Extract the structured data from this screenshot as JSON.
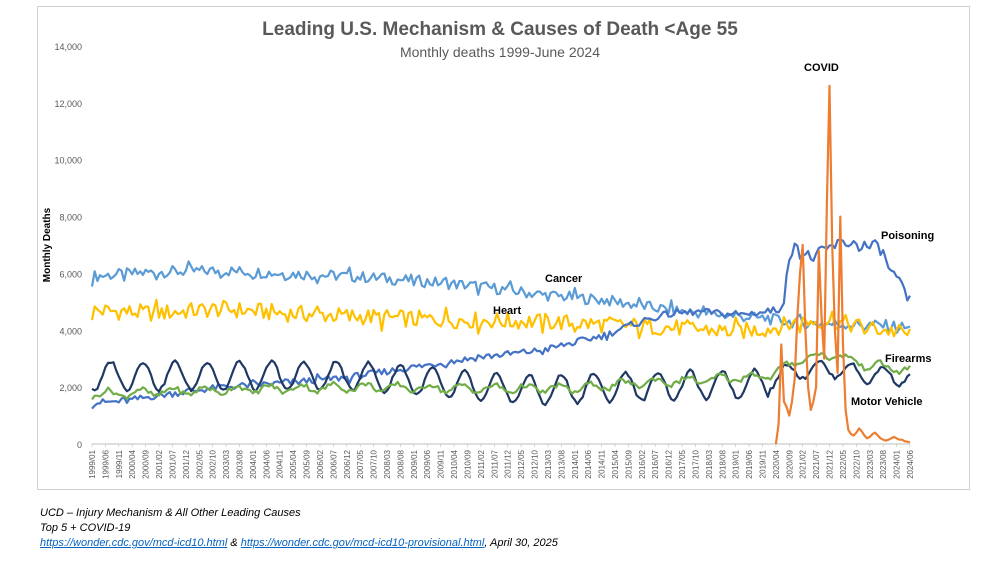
{
  "chart_data": {
    "type": "line",
    "title": "Leading U.S. Mechanism & Causes of Death <Age 55",
    "subtitle": "Monthly deaths 1999-June 2024",
    "xlabel": "",
    "ylabel": "Monthly Deaths",
    "ylim": [
      0,
      14000
    ],
    "yticks": [
      "0",
      "2,000",
      "4,000",
      "6,000",
      "8,000",
      "10,000",
      "12,000",
      "14,000"
    ],
    "xticks": [
      "1999/01",
      "1999/06",
      "1999/11",
      "2000/04",
      "2000/09",
      "2001/02",
      "2001/07",
      "2001/12",
      "2002/05",
      "2002/10",
      "2003/03",
      "2003/08",
      "2004/01",
      "2004/06",
      "2004/11",
      "2005/04",
      "2005/09",
      "2006/02",
      "2006/07",
      "2006/12",
      "2007/05",
      "2007/10",
      "2008/03",
      "2008/08",
      "2009/01",
      "2009/06",
      "2009/11",
      "2010/04",
      "2010/09",
      "2011/02",
      "2011/07",
      "2011/12",
      "2012/05",
      "2012/10",
      "2013/03",
      "2013/08",
      "2014/01",
      "2014/06",
      "2014/11",
      "2015/04",
      "2015/09",
      "2016/02",
      "2016/07",
      "2016/12",
      "2017/05",
      "2017/10",
      "2018/03",
      "2018/08",
      "2019/01",
      "2019/06",
      "2019/11",
      "2020/04",
      "2020/09",
      "2021/02",
      "2021/07",
      "2021/12",
      "2022/05",
      "2022/10",
      "2023/03",
      "2023/08",
      "2024/01",
      "2024/06"
    ],
    "series": [
      {
        "name": "Cancer",
        "color": "#5b9bd5",
        "label": "Cancer",
        "anchors": [
          [
            0,
            5900
          ],
          [
            24,
            6050
          ],
          [
            48,
            6100
          ],
          [
            72,
            6000
          ],
          [
            96,
            5900
          ],
          [
            120,
            5750
          ],
          [
            144,
            5550
          ],
          [
            168,
            5250
          ],
          [
            192,
            5050
          ],
          [
            216,
            4700
          ],
          [
            240,
            4500
          ],
          [
            252,
            4400
          ],
          [
            264,
            4250
          ],
          [
            288,
            4200
          ],
          [
            300,
            4150
          ],
          [
            305,
            4050
          ]
        ],
        "amp": 200
      },
      {
        "name": "Heart",
        "color": "#ffc000",
        "label": "Heart",
        "anchors": [
          [
            0,
            4700
          ],
          [
            24,
            4600
          ],
          [
            48,
            4750
          ],
          [
            72,
            4600
          ],
          [
            96,
            4500
          ],
          [
            120,
            4400
          ],
          [
            144,
            4350
          ],
          [
            168,
            4300
          ],
          [
            192,
            4200
          ],
          [
            216,
            4100
          ],
          [
            240,
            3950
          ],
          [
            252,
            4050
          ],
          [
            264,
            4300
          ],
          [
            276,
            4350
          ],
          [
            288,
            4100
          ],
          [
            300,
            3950
          ],
          [
            305,
            3850
          ]
        ],
        "amp": 300
      },
      {
        "name": "Poisoning",
        "color": "#4472c4",
        "label": "Poisoning",
        "anchors": [
          [
            0,
            1450
          ],
          [
            12,
            1500
          ],
          [
            24,
            1700
          ],
          [
            48,
            2000
          ],
          [
            72,
            2150
          ],
          [
            96,
            2350
          ],
          [
            120,
            2700
          ],
          [
            144,
            3050
          ],
          [
            168,
            3300
          ],
          [
            192,
            3850
          ],
          [
            204,
            4300
          ],
          [
            216,
            4600
          ],
          [
            228,
            4650
          ],
          [
            240,
            4550
          ],
          [
            252,
            4650
          ],
          [
            256,
            4750
          ],
          [
            258,
            5200
          ],
          [
            260,
            6300
          ],
          [
            262,
            7300
          ],
          [
            264,
            6700
          ],
          [
            268,
            6550
          ],
          [
            272,
            6700
          ],
          [
            276,
            6950
          ],
          [
            282,
            7100
          ],
          [
            288,
            6950
          ],
          [
            294,
            6900
          ],
          [
            296,
            6400
          ],
          [
            300,
            5750
          ],
          [
            305,
            5000
          ]
        ],
        "amp": 120
      },
      {
        "name": "Motor Vehicle",
        "color": "#1f3864",
        "label": "Motor Vehicle",
        "anchors": [
          [
            0,
            2400
          ],
          [
            96,
            2400
          ],
          [
            120,
            2250
          ],
          [
            144,
            2000
          ],
          [
            168,
            1900
          ],
          [
            192,
            2000
          ],
          [
            216,
            2050
          ],
          [
            240,
            2100
          ],
          [
            252,
            2150
          ],
          [
            258,
            2500
          ],
          [
            264,
            2600
          ],
          [
            276,
            2650
          ],
          [
            288,
            2450
          ],
          [
            305,
            2350
          ]
        ],
        "amp": 500
      },
      {
        "name": "Firearms",
        "color": "#70ad47",
        "label": "Firearms",
        "anchors": [
          [
            0,
            1750
          ],
          [
            48,
            1900
          ],
          [
            96,
            2000
          ],
          [
            144,
            1950
          ],
          [
            180,
            1950
          ],
          [
            204,
            2150
          ],
          [
            228,
            2250
          ],
          [
            252,
            2400
          ],
          [
            258,
            2650
          ],
          [
            264,
            3000
          ],
          [
            276,
            3150
          ],
          [
            288,
            2800
          ],
          [
            300,
            2650
          ],
          [
            305,
            2600
          ]
        ],
        "amp": 130
      },
      {
        "name": "COVID",
        "color": "#ed7d31",
        "label": "COVID",
        "start": 255,
        "values": [
          0,
          700,
          3500,
          1500,
          1300,
          1000,
          1500,
          2300,
          4500,
          6000,
          7000,
          4000,
          2000,
          1200,
          1500,
          2000,
          6800,
          4500,
          3000,
          8500,
          12600,
          7000,
          4000,
          2500,
          8000,
          3500,
          1200,
          500,
          350,
          300,
          400,
          550,
          450,
          300,
          200,
          250,
          350,
          400,
          300,
          200,
          150,
          120,
          150,
          200,
          250,
          200,
          150,
          150,
          100,
          80,
          60
        ]
      }
    ]
  },
  "footer": {
    "line1": "UCD – Injury Mechanism & All Other Leading Causes",
    "line2": "Top 5 + COVID-19",
    "link1": "https://wonder.cdc.gov/mcd-icd10.html",
    "amp": " & ",
    "link2": "https://wonder.cdc.gov/mcd-icd10-provisional.html",
    "date": ", April 30, 2025"
  }
}
